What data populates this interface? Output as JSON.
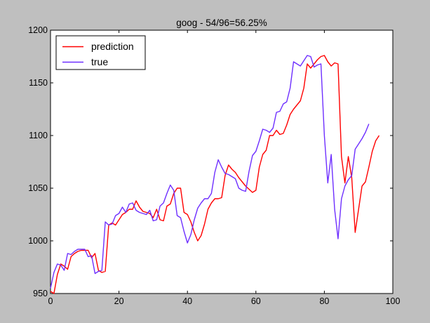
{
  "chart_data": {
    "type": "line",
    "title": "goog - 54/96=56.25%",
    "xlabel": "",
    "ylabel": "",
    "xlim": [
      0,
      100
    ],
    "ylim": [
      950,
      1200
    ],
    "xticks": [
      0,
      20,
      40,
      60,
      80,
      100
    ],
    "yticks": [
      950,
      1000,
      1050,
      1100,
      1150,
      1200
    ],
    "grid": false,
    "legend_position": "top-left",
    "colors": {
      "prediction": "#ff0000",
      "true": "#6e2fff"
    },
    "series": [
      {
        "name": "prediction",
        "values": [
          952,
          950,
          968,
          978,
          976,
          973,
          985,
          988,
          990,
          991,
          991,
          991,
          984,
          988,
          972,
          970,
          971,
          1015,
          1017,
          1015,
          1020,
          1025,
          1027,
          1030,
          1030,
          1038,
          1032,
          1028,
          1027,
          1026,
          1022,
          1030,
          1020,
          1019,
          1033,
          1035,
          1045,
          1050,
          1050,
          1027,
          1025,
          1018,
          1008,
          1000,
          1005,
          1016,
          1030,
          1036,
          1040,
          1040,
          1041,
          1062,
          1072,
          1068,
          1065,
          1060,
          1056,
          1052,
          1049,
          1046,
          1048,
          1070,
          1082,
          1086,
          1100,
          1100,
          1105,
          1101,
          1102,
          1110,
          1120,
          1125,
          1129,
          1133,
          1145,
          1168,
          1164,
          1168,
          1172,
          1175,
          1176,
          1170,
          1166,
          1169,
          1168,
          1080,
          1055,
          1080,
          1060,
          1008,
          1030,
          1052,
          1056,
          1070,
          1085,
          1095,
          1100
        ]
      },
      {
        "name": "true",
        "values": [
          955,
          970,
          978,
          977,
          972,
          988,
          987,
          990,
          992,
          992,
          992,
          985,
          986,
          969,
          971,
          972,
          1018,
          1015,
          1016,
          1024,
          1026,
          1032,
          1027,
          1035,
          1036,
          1029,
          1027,
          1026,
          1025,
          1029,
          1019,
          1020,
          1033,
          1036,
          1045,
          1053,
          1048,
          1024,
          1022,
          1009,
          998,
          1006,
          1020,
          1031,
          1036,
          1040,
          1040,
          1045,
          1065,
          1077,
          1070,
          1064,
          1063,
          1061,
          1059,
          1050,
          1048,
          1047,
          1066,
          1081,
          1085,
          1095,
          1106,
          1105,
          1103,
          1107,
          1122,
          1123,
          1130,
          1132,
          1145,
          1170,
          1168,
          1166,
          1171,
          1176,
          1175,
          1165,
          1167,
          1168,
          1100,
          1055,
          1082,
          1030,
          1002,
          1040,
          1052,
          1058,
          1062,
          1087,
          1092,
          1097,
          1103,
          1111
        ]
      }
    ]
  }
}
